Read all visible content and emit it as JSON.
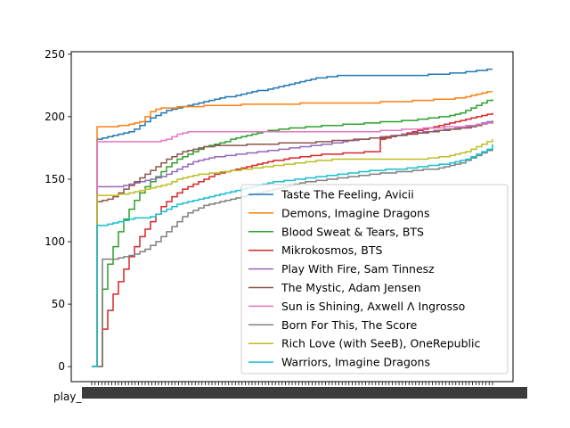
{
  "chart_data": {
    "type": "line",
    "title": "",
    "xlabel": "",
    "ylabel": "",
    "ylim": [
      -12,
      252
    ],
    "yticks": [
      0,
      50,
      100,
      150,
      200,
      250
    ],
    "xtick_labels_visible": [
      "play_"
    ],
    "grid": false,
    "legend_position": "right",
    "x": [
      0,
      6,
      12,
      18,
      24,
      30,
      36,
      42,
      48,
      54,
      60,
      66,
      72,
      78,
      84,
      90,
      96,
      102,
      108,
      114,
      120,
      126,
      132,
      138,
      144,
      150,
      156,
      162,
      168,
      174,
      180,
      186,
      192,
      198,
      204,
      210,
      216,
      222,
      228,
      234,
      240,
      246,
      252,
      258,
      264,
      270,
      276,
      282,
      288,
      294,
      300,
      306,
      312,
      318,
      324,
      330,
      336,
      342,
      348,
      354,
      360,
      366,
      372,
      378,
      384,
      390,
      396,
      402,
      408,
      414,
      420,
      426,
      432,
      438,
      444,
      450
    ],
    "series": [
      {
        "name": "Taste The Feeling, Avicii",
        "color": "#1f77b4",
        "values": [
          0,
          182,
          183,
          184,
          185,
          186,
          187,
          188,
          190,
          193,
          196,
          199,
          201,
          203,
          205,
          206,
          207,
          208,
          209,
          210,
          211,
          212,
          213,
          214,
          215,
          216,
          216,
          217,
          218,
          219,
          220,
          221,
          221,
          222,
          223,
          224,
          225,
          226,
          227,
          228,
          229,
          230,
          231,
          231,
          232,
          232,
          233,
          233,
          233,
          233,
          233,
          233,
          233,
          233,
          233,
          233,
          233,
          233,
          233,
          233,
          233,
          233,
          233,
          234,
          234,
          234,
          234,
          235,
          235,
          235,
          236,
          236,
          237,
          237,
          238,
          238
        ]
      },
      {
        "name": "Demons, Imagine Dragons",
        "color": "#ff7f0e",
        "values": [
          0,
          192,
          192,
          192,
          192,
          193,
          193,
          194,
          195,
          196,
          200,
          204,
          206,
          207,
          207,
          207,
          208,
          208,
          208,
          208,
          208,
          209,
          209,
          209,
          209,
          209,
          209,
          209,
          210,
          210,
          210,
          210,
          210,
          210,
          210,
          210,
          210,
          210,
          210,
          211,
          211,
          211,
          211,
          211,
          211,
          211,
          211,
          211,
          211,
          211,
          211,
          211,
          211,
          211,
          212,
          212,
          212,
          212,
          212,
          212,
          213,
          213,
          213,
          213,
          214,
          214,
          214,
          214,
          215,
          215,
          216,
          217,
          218,
          219,
          220,
          220
        ]
      },
      {
        "name": "Blood Sweat & Tears, BTS",
        "color": "#2ca02c",
        "values": [
          0,
          0,
          62,
          82,
          96,
          108,
          118,
          126,
          133,
          139,
          144,
          148,
          152,
          156,
          160,
          163,
          166,
          168,
          170,
          172,
          174,
          176,
          177,
          178,
          179,
          180,
          182,
          183,
          184,
          185,
          186,
          187,
          188,
          189,
          189,
          190,
          190,
          191,
          191,
          191,
          192,
          192,
          192,
          193,
          193,
          193,
          193,
          194,
          194,
          194,
          194,
          195,
          195,
          195,
          196,
          196,
          196,
          196,
          197,
          197,
          197,
          198,
          198,
          199,
          199,
          200,
          200,
          201,
          202,
          203,
          205,
          207,
          209,
          211,
          213,
          214
        ]
      },
      {
        "name": "Mikrokosmos, BTS",
        "color": "#d62728",
        "values": [
          0,
          0,
          30,
          45,
          58,
          68,
          78,
          88,
          96,
          104,
          110,
          116,
          122,
          128,
          132,
          136,
          139,
          142,
          144,
          146,
          148,
          150,
          152,
          154,
          155,
          156,
          157,
          158,
          159,
          160,
          161,
          162,
          163,
          164,
          165,
          165,
          166,
          167,
          167,
          168,
          168,
          169,
          169,
          170,
          170,
          170,
          170,
          171,
          171,
          171,
          171,
          172,
          172,
          172,
          182,
          183,
          184,
          185,
          186,
          187,
          188,
          189,
          190,
          191,
          192,
          193,
          194,
          195,
          196,
          197,
          198,
          199,
          200,
          201,
          202,
          203
        ]
      },
      {
        "name": "Play With Fire, Sam Tinnesz",
        "color": "#9467bd",
        "values": [
          0,
          144,
          144,
          144,
          144,
          144,
          145,
          146,
          147,
          148,
          149,
          150,
          151,
          152,
          154,
          156,
          158,
          160,
          162,
          164,
          165,
          166,
          167,
          168,
          168,
          169,
          169,
          170,
          170,
          171,
          171,
          172,
          172,
          173,
          173,
          174,
          174,
          175,
          175,
          176,
          176,
          177,
          177,
          178,
          178,
          179,
          179,
          180,
          181,
          181,
          182,
          182,
          183,
          183,
          184,
          184,
          185,
          185,
          186,
          186,
          187,
          187,
          188,
          188,
          189,
          189,
          190,
          190,
          191,
          191,
          192,
          193,
          194,
          195,
          196,
          197
        ]
      },
      {
        "name": "The Mystic, Adam Jensen",
        "color": "#8c564b",
        "values": [
          0,
          132,
          133,
          134,
          136,
          139,
          142,
          145,
          148,
          151,
          154,
          157,
          160,
          163,
          166,
          168,
          170,
          172,
          173,
          174,
          175,
          176,
          176,
          177,
          177,
          177,
          177,
          177,
          177,
          178,
          178,
          178,
          178,
          178,
          178,
          179,
          179,
          179,
          179,
          179,
          179,
          179,
          180,
          180,
          180,
          181,
          181,
          181,
          181,
          182,
          182,
          182,
          183,
          183,
          183,
          184,
          184,
          185,
          185,
          186,
          186,
          187,
          187,
          188,
          188,
          189,
          189,
          190,
          190,
          191,
          191,
          192,
          193,
          194,
          195,
          196
        ]
      },
      {
        "name": "Sun is Shining, Axwell Λ Ingrosso",
        "color": "#e377c2",
        "values": [
          0,
          180,
          180,
          180,
          180,
          180,
          180,
          180,
          180,
          180,
          180,
          180,
          180,
          181,
          182,
          184,
          186,
          187,
          188,
          188,
          188,
          188,
          188,
          188,
          188,
          188,
          188,
          188,
          188,
          188,
          188,
          188,
          188,
          188,
          188,
          188,
          188,
          188,
          188,
          188,
          188,
          188,
          188,
          188,
          188,
          188,
          188,
          188,
          188,
          188,
          188,
          188,
          188,
          188,
          189,
          189,
          189,
          189,
          190,
          190,
          190,
          190,
          191,
          191,
          191,
          191,
          192,
          192,
          192,
          192,
          193,
          193,
          194,
          194,
          195,
          195
        ]
      },
      {
        "name": "Born For This, The Score",
        "color": "#7f7f7f",
        "values": [
          0,
          0,
          86,
          86,
          86,
          87,
          88,
          89,
          90,
          92,
          94,
          97,
          100,
          104,
          108,
          112,
          116,
          120,
          123,
          125,
          127,
          129,
          130,
          131,
          132,
          133,
          134,
          135,
          136,
          137,
          138,
          139,
          140,
          141,
          142,
          143,
          144,
          145,
          146,
          147,
          148,
          148,
          149,
          149,
          150,
          150,
          151,
          151,
          152,
          152,
          153,
          153,
          154,
          154,
          155,
          155,
          155,
          156,
          156,
          156,
          157,
          157,
          158,
          158,
          158,
          159,
          160,
          161,
          162,
          163,
          165,
          167,
          169,
          171,
          173,
          175
        ]
      },
      {
        "name": "Rich Love (with SeeB), OneRepublic",
        "color": "#bcbd22",
        "values": [
          0,
          137,
          137,
          137,
          137,
          138,
          138,
          139,
          140,
          141,
          142,
          143,
          144,
          145,
          146,
          148,
          150,
          151,
          152,
          153,
          154,
          154,
          155,
          155,
          156,
          156,
          157,
          157,
          158,
          158,
          159,
          159,
          160,
          160,
          161,
          161,
          162,
          162,
          163,
          163,
          164,
          164,
          165,
          165,
          165,
          166,
          166,
          166,
          166,
          166,
          166,
          166,
          166,
          166,
          166,
          166,
          166,
          166,
          166,
          166,
          166,
          166,
          166,
          167,
          167,
          168,
          168,
          169,
          170,
          171,
          172,
          174,
          176,
          178,
          180,
          182
        ]
      },
      {
        "name": "Warriors, Imagine Dragons",
        "color": "#17becf",
        "values": [
          0,
          113,
          113,
          114,
          115,
          116,
          117,
          118,
          119,
          119,
          119,
          120,
          122,
          124,
          126,
          128,
          130,
          131,
          132,
          133,
          134,
          135,
          136,
          137,
          138,
          139,
          140,
          141,
          142,
          143,
          144,
          145,
          146,
          147,
          148,
          148,
          149,
          149,
          150,
          150,
          151,
          151,
          152,
          152,
          153,
          153,
          154,
          154,
          155,
          155,
          156,
          156,
          157,
          157,
          157,
          158,
          158,
          158,
          158,
          159,
          159,
          160,
          160,
          161,
          161,
          162,
          162,
          163,
          164,
          165,
          166,
          168,
          170,
          172,
          174,
          178
        ]
      }
    ]
  }
}
